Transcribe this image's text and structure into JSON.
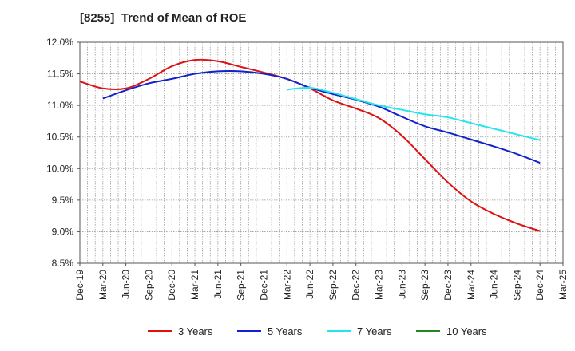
{
  "chart_data": {
    "type": "line",
    "title": "[8255]  Trend of Mean of ROE",
    "xlabel": "",
    "ylabel": "",
    "ylim": [
      8.5,
      12.0
    ],
    "y_ticks": [
      "8.5%",
      "9.0%",
      "9.5%",
      "10.0%",
      "10.5%",
      "11.0%",
      "11.5%",
      "12.0%"
    ],
    "y_tick_values": [
      8.5,
      9.0,
      9.5,
      10.0,
      10.5,
      11.0,
      11.5,
      12.0
    ],
    "categories": [
      "Dec-19",
      "Mar-20",
      "Jun-20",
      "Sep-20",
      "Dec-20",
      "Mar-21",
      "Jun-21",
      "Sep-21",
      "Dec-21",
      "Mar-22",
      "Jun-22",
      "Sep-22",
      "Dec-22",
      "Mar-23",
      "Jun-23",
      "Sep-23",
      "Dec-23",
      "Mar-24",
      "Jun-24",
      "Sep-24",
      "Dec-24",
      "Mar-25"
    ],
    "grid": true,
    "legend_position": "bottom",
    "series": [
      {
        "name": "3 Years",
        "color": "#dd1111",
        "values": [
          11.38,
          11.27,
          11.27,
          11.42,
          11.62,
          11.72,
          11.7,
          11.61,
          11.52,
          11.42,
          11.27,
          11.08,
          10.95,
          10.8,
          10.52,
          10.15,
          9.78,
          9.48,
          9.28,
          9.13,
          9.01,
          null
        ]
      },
      {
        "name": "5 Years",
        "color": "#1122cc",
        "values": [
          null,
          11.11,
          11.24,
          11.35,
          11.42,
          11.5,
          11.54,
          11.54,
          11.5,
          11.42,
          11.28,
          11.18,
          11.09,
          10.98,
          10.82,
          10.67,
          10.57,
          10.46,
          10.35,
          10.23,
          10.09,
          null
        ]
      },
      {
        "name": "7 Years",
        "color": "#22e5ee",
        "values": [
          null,
          null,
          null,
          null,
          null,
          null,
          null,
          null,
          null,
          11.25,
          11.28,
          11.2,
          11.1,
          11.0,
          10.93,
          10.86,
          10.81,
          10.72,
          10.63,
          10.54,
          10.45,
          null
        ]
      },
      {
        "name": "10 Years",
        "color": "#228822",
        "values": [
          null,
          null,
          null,
          null,
          null,
          null,
          null,
          null,
          null,
          null,
          null,
          null,
          null,
          null,
          null,
          null,
          null,
          null,
          null,
          null,
          null,
          null
        ]
      }
    ]
  }
}
